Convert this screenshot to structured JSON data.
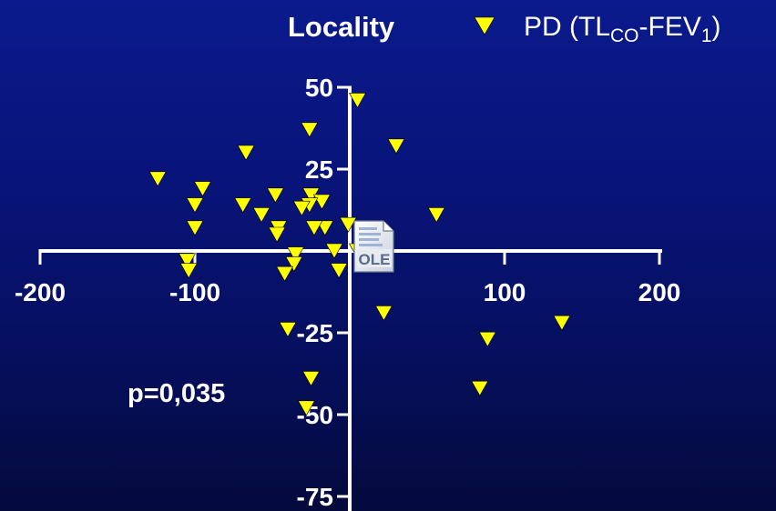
{
  "chart_data": {
    "type": "scatter",
    "title": "Locality",
    "legend": {
      "label_main": "PD (TL",
      "label_sub1": "CO",
      "label_mid": "-FEV",
      "label_sub2": "1",
      "label_end": ")",
      "position": "top-right",
      "marker": "down-triangle",
      "color": "#ffff00"
    },
    "annotation": "p=0,035",
    "xlim": [
      -200,
      200
    ],
    "ylim": [
      -75,
      50
    ],
    "x_ticks": [
      -200,
      -100,
      100,
      200
    ],
    "x_tick_labels": [
      "-200",
      "-100",
      "100",
      "200"
    ],
    "y_ticks": [
      50,
      25,
      -25,
      -50,
      -75
    ],
    "y_tick_labels": [
      "50",
      "25",
      "-25",
      "-50",
      "-75"
    ],
    "grid": false,
    "series": [
      {
        "marker": "down-triangle",
        "color": "#ffff00",
        "points": [
          {
            "x": 5,
            "y": 46
          },
          {
            "x": -26,
            "y": 37
          },
          {
            "x": 30,
            "y": 32
          },
          {
            "x": -67,
            "y": 30
          },
          {
            "x": -124,
            "y": 22
          },
          {
            "x": -95,
            "y": 19
          },
          {
            "x": -100,
            "y": 14
          },
          {
            "x": -69,
            "y": 14
          },
          {
            "x": -48,
            "y": 17
          },
          {
            "x": -25,
            "y": 17
          },
          {
            "x": -18,
            "y": 15
          },
          {
            "x": -26,
            "y": 14
          },
          {
            "x": -31,
            "y": 13
          },
          {
            "x": -57,
            "y": 11
          },
          {
            "x": 56,
            "y": 11
          },
          {
            "x": -100,
            "y": 7
          },
          {
            "x": -46,
            "y": 7
          },
          {
            "x": -16,
            "y": 7
          },
          {
            "x": -23,
            "y": 7
          },
          {
            "x": -47,
            "y": 5
          },
          {
            "x": -1,
            "y": 8
          },
          {
            "x": 20,
            "y": 3
          },
          {
            "x": -10,
            "y": 0
          },
          {
            "x": 5,
            "y": 0
          },
          {
            "x": -35,
            "y": -1
          },
          {
            "x": -36,
            "y": -4
          },
          {
            "x": -105,
            "y": -3
          },
          {
            "x": -104,
            "y": -6
          },
          {
            "x": -42,
            "y": -7
          },
          {
            "x": -7,
            "y": -6
          },
          {
            "x": 22,
            "y": -19
          },
          {
            "x": 137,
            "y": -22
          },
          {
            "x": -40,
            "y": -24
          },
          {
            "x": 89,
            "y": -27
          },
          {
            "x": -25,
            "y": -39
          },
          {
            "x": 84,
            "y": -42
          },
          {
            "x": -28,
            "y": -48
          }
        ]
      }
    ]
  },
  "ole_icon": {
    "label": "OLE"
  }
}
